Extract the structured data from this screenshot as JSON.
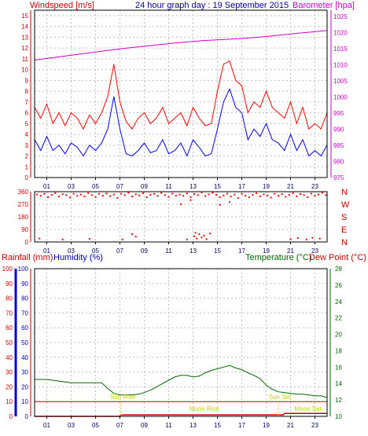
{
  "header": {
    "windspeed_label": "Windspeed [m/s]",
    "title": "24 hour graph day : 19 September 2015",
    "barometer_label": "Barometer [hpa]"
  },
  "lower_header": {
    "rainfall_label": "Rainfall (mm)",
    "humidity_label": "Humidity (%)",
    "temperature_label": "Temperature (°C)",
    "dewpoint_label": "Dew Point (°C)"
  },
  "colors": {
    "wind_gust": "#ff0000",
    "wind_avg": "#0000ff",
    "barometer": "#cc00cc",
    "direction": "#ff0000",
    "rainfall": "#cc0000",
    "humidity": "#0000cc",
    "temperature": "#006600",
    "dewpoint": "#cc0000",
    "sun_line": "#cc0000",
    "moon_line": "#cc0000",
    "annotation": "#cccc00",
    "grid": "#c0c0c0"
  },
  "chart_data": [
    {
      "type": "line",
      "name": "wind-barometer",
      "x_ticks": [
        "01",
        "03",
        "05",
        "07",
        "09",
        "11",
        "13",
        "15",
        "17",
        "19",
        "21",
        "23"
      ],
      "y_left_ticks": [
        0,
        1,
        2,
        3,
        4,
        5,
        6,
        7,
        8,
        9,
        10,
        11,
        12,
        13,
        14,
        15
      ],
      "y_left_range": [
        0,
        15.5
      ],
      "y_right_ticks": [
        975,
        980,
        985,
        990,
        995,
        1000,
        1005,
        1010,
        1015,
        1020,
        1025
      ],
      "y_right_range": [
        975,
        1027
      ],
      "x_range": [
        0,
        24
      ],
      "series": [
        {
          "name": "gust",
          "axis": "left",
          "x": [
            0,
            0.5,
            1,
            1.5,
            2,
            2.5,
            3,
            3.5,
            4,
            4.5,
            5,
            5.5,
            6,
            6.5,
            7,
            7.5,
            8,
            8.5,
            9,
            9.5,
            10,
            10.5,
            11,
            11.5,
            12,
            12.5,
            13,
            13.5,
            14,
            14.5,
            15,
            15.5,
            16,
            16.5,
            17,
            17.5,
            18,
            18.5,
            19,
            19.5,
            20,
            20.5,
            21,
            21.5,
            22,
            22.5,
            23,
            23.5,
            24
          ],
          "values": [
            6.5,
            5.5,
            6.8,
            5,
            6,
            4.8,
            6,
            5.5,
            4.5,
            5.8,
            5,
            6,
            7.5,
            10.5,
            7,
            5.2,
            4.5,
            5.5,
            6,
            5,
            5.5,
            6.5,
            5,
            5.5,
            6,
            4.8,
            6.5,
            5.5,
            4.8,
            5,
            8,
            10.5,
            10.8,
            9,
            8.5,
            6,
            7,
            6.5,
            8,
            6.5,
            6,
            5.5,
            7,
            5,
            6.5,
            4.5,
            5,
            4.5,
            6
          ]
        },
        {
          "name": "average",
          "axis": "left",
          "x": [
            0,
            0.5,
            1,
            1.5,
            2,
            2.5,
            3,
            3.5,
            4,
            4.5,
            5,
            5.5,
            6,
            6.5,
            7,
            7.5,
            8,
            8.5,
            9,
            9.5,
            10,
            10.5,
            11,
            11.5,
            12,
            12.5,
            13,
            13.5,
            14,
            14.5,
            15,
            15.5,
            16,
            16.5,
            17,
            17.5,
            18,
            18.5,
            19,
            19.5,
            20,
            20.5,
            21,
            21.5,
            22,
            22.5,
            23,
            23.5,
            24
          ],
          "values": [
            3.5,
            2.5,
            3.8,
            2.5,
            3,
            2.2,
            3.2,
            2.8,
            2,
            3,
            2.5,
            3.2,
            4.5,
            7.5,
            4.5,
            2.2,
            2,
            2.5,
            3.2,
            2.3,
            2.5,
            3.5,
            2.2,
            2.5,
            3.2,
            2,
            3.5,
            2.8,
            2,
            2.2,
            4.5,
            7,
            8.2,
            6.5,
            6,
            3.5,
            4.5,
            3.8,
            5,
            3.5,
            3.2,
            2.5,
            4,
            2.5,
            3.5,
            2,
            2.5,
            2,
            3
          ]
        },
        {
          "name": "barometer",
          "axis": "right",
          "x": [
            0,
            1,
            2,
            3,
            4,
            5,
            6,
            7,
            8,
            9,
            10,
            11,
            12,
            13,
            14,
            15,
            16,
            17,
            18,
            19,
            20,
            21,
            22,
            23,
            24
          ],
          "values": [
            1011.5,
            1012,
            1012.5,
            1013,
            1013.5,
            1014,
            1014.5,
            1015,
            1015.4,
            1015.8,
            1016.2,
            1016.6,
            1017,
            1017.3,
            1017.6,
            1017.8,
            1018,
            1018.2,
            1018.5,
            1018.8,
            1019.2,
            1019.6,
            1020,
            1020.3,
            1020.7
          ]
        }
      ]
    },
    {
      "type": "scatter",
      "name": "wind-direction",
      "x_ticks": [
        "01",
        "03",
        "05",
        "07",
        "09",
        "11",
        "13",
        "15",
        "17",
        "19",
        "21",
        "23"
      ],
      "y_ticks": [
        0,
        90,
        180,
        270,
        360
      ],
      "y_range": [
        0,
        360
      ],
      "x_range": [
        0,
        24
      ],
      "direction_labels": [
        "N",
        "W",
        "S",
        "E",
        "N"
      ],
      "points": [
        [
          0.2,
          340
        ],
        [
          0.5,
          330
        ],
        [
          0.8,
          345
        ],
        [
          1.1,
          320
        ],
        [
          1.4,
          338
        ],
        [
          1.7,
          350
        ],
        [
          2.0,
          325
        ],
        [
          2.3,
          342
        ],
        [
          2.6,
          335
        ],
        [
          2.9,
          318
        ],
        [
          3.2,
          345
        ],
        [
          3.5,
          330
        ],
        [
          3.8,
          340
        ],
        [
          4.1,
          326
        ],
        [
          4.4,
          350
        ],
        [
          4.7,
          336
        ],
        [
          5.0,
          322
        ],
        [
          5.3,
          344
        ],
        [
          5.6,
          331
        ],
        [
          5.9,
          347
        ],
        [
          6.2,
          328
        ],
        [
          6.5,
          340
        ],
        [
          6.8,
          315
        ],
        [
          7.1,
          345
        ],
        [
          7.4,
          335
        ],
        [
          7.7,
          352
        ],
        [
          8.0,
          326
        ],
        [
          8.3,
          341
        ],
        [
          8.6,
          333
        ],
        [
          8.9,
          349
        ],
        [
          9.2,
          320
        ],
        [
          9.5,
          338
        ],
        [
          9.8,
          344
        ],
        [
          10.1,
          329
        ],
        [
          10.4,
          351
        ],
        [
          10.7,
          336
        ],
        [
          11.0,
          323
        ],
        [
          11.3,
          346
        ],
        [
          11.6,
          332
        ],
        [
          11.9,
          340
        ],
        [
          12.2,
          330
        ],
        [
          12.5,
          348
        ],
        [
          12.8,
          322
        ],
        [
          13.1,
          343
        ],
        [
          13.4,
          335
        ],
        [
          13.7,
          355
        ],
        [
          14.0,
          328
        ],
        [
          14.3,
          341
        ],
        [
          14.6,
          352
        ],
        [
          14.9,
          337
        ],
        [
          15.2,
          320
        ],
        [
          15.5,
          333
        ],
        [
          15.8,
          346
        ],
        [
          16.1,
          325
        ],
        [
          16.4,
          339
        ],
        [
          16.7,
          314
        ],
        [
          17.0,
          344
        ],
        [
          17.3,
          331
        ],
        [
          17.6,
          320
        ],
        [
          17.9,
          337
        ],
        [
          18.2,
          349
        ],
        [
          18.5,
          326
        ],
        [
          18.8,
          341
        ],
        [
          19.1,
          333
        ],
        [
          19.4,
          318
        ],
        [
          19.7,
          345
        ],
        [
          20.0,
          330
        ],
        [
          20.3,
          342
        ],
        [
          20.6,
          324
        ],
        [
          20.9,
          338
        ],
        [
          21.2,
          350
        ],
        [
          21.5,
          327
        ],
        [
          21.8,
          343
        ],
        [
          22.1,
          335
        ],
        [
          22.4,
          320
        ],
        [
          22.7,
          346
        ],
        [
          23.0,
          331
        ],
        [
          23.3,
          340
        ],
        [
          23.6,
          352
        ],
        [
          23.9,
          336
        ],
        [
          0.4,
          25
        ],
        [
          2.3,
          18
        ],
        [
          4.5,
          22
        ],
        [
          7.2,
          18
        ],
        [
          8.0,
          55
        ],
        [
          8.3,
          38
        ],
        [
          12.0,
          270
        ],
        [
          12.8,
          300
        ],
        [
          13.1,
          40
        ],
        [
          13.3,
          25
        ],
        [
          13.5,
          55
        ],
        [
          13.7,
          32
        ],
        [
          13.9,
          45
        ],
        [
          14.1,
          20
        ],
        [
          14.4,
          60
        ],
        [
          15.2,
          265
        ],
        [
          16.0,
          285
        ],
        [
          21.0,
          20
        ],
        [
          21.6,
          28
        ],
        [
          22.3,
          18
        ],
        [
          22.8,
          30
        ],
        [
          23.4,
          24
        ],
        [
          12.5,
          18
        ],
        [
          13.2,
          65
        ]
      ]
    },
    {
      "type": "line",
      "name": "rain-humidity-temperature",
      "x_ticks": [
        "01",
        "03",
        "05",
        "07",
        "09",
        "11",
        "13",
        "15",
        "17",
        "19",
        "21",
        "23"
      ],
      "y_left_ticks": [
        0,
        10,
        20,
        30,
        40,
        50,
        60,
        70,
        80,
        90,
        100
      ],
      "y_left_range": [
        0,
        100
      ],
      "y_right_ticks": [
        10,
        12,
        14,
        16,
        18,
        20,
        22,
        24,
        26,
        28
      ],
      "y_right_range": [
        10,
        28
      ],
      "x_range": [
        0,
        24
      ],
      "series": [
        {
          "name": "temperature",
          "axis": "right",
          "x": [
            0,
            1,
            2,
            3,
            4,
            5,
            5.5,
            6,
            6.5,
            7,
            7.5,
            8,
            8.5,
            9,
            9.5,
            10,
            10.5,
            11,
            11.5,
            12,
            12.5,
            13,
            13.5,
            14,
            14.5,
            15,
            15.5,
            16,
            16.5,
            17,
            17.5,
            18,
            18.5,
            19,
            19.5,
            20,
            20.5,
            21,
            21.5,
            22,
            22.5,
            23,
            23.5,
            24
          ],
          "values": [
            14.5,
            14.5,
            14.3,
            14.1,
            14.1,
            14.1,
            14.1,
            13.4,
            12.8,
            12.6,
            12.6,
            12.6,
            12.7,
            12.9,
            13.2,
            13.6,
            14.0,
            14.4,
            14.8,
            15.0,
            15.0,
            14.8,
            14.9,
            15.3,
            15.6,
            15.8,
            16.0,
            16.2,
            15.9,
            15.7,
            15.3,
            15.0,
            14.6,
            13.8,
            13.3,
            13.0,
            12.9,
            12.8,
            12.7,
            12.7,
            12.6,
            12.5,
            12.5,
            12.3
          ]
        },
        {
          "name": "rainfall",
          "axis": "left",
          "x": [
            0,
            7,
            7.1,
            20.4,
            20.5,
            24
          ],
          "values": [
            0,
            0,
            1,
            1,
            2,
            2
          ]
        }
      ],
      "horizontal_lines": [
        {
          "name": "sun-line",
          "y_left": 10
        }
      ],
      "annotations": [
        {
          "label": "Sun Rise",
          "x": 7.1
        },
        {
          "label": "Moon Rise",
          "x": 13.8
        },
        {
          "label": "Sun Set",
          "x": 20.0
        },
        {
          "label": "Moon Set",
          "x": 22.3
        }
      ]
    }
  ]
}
